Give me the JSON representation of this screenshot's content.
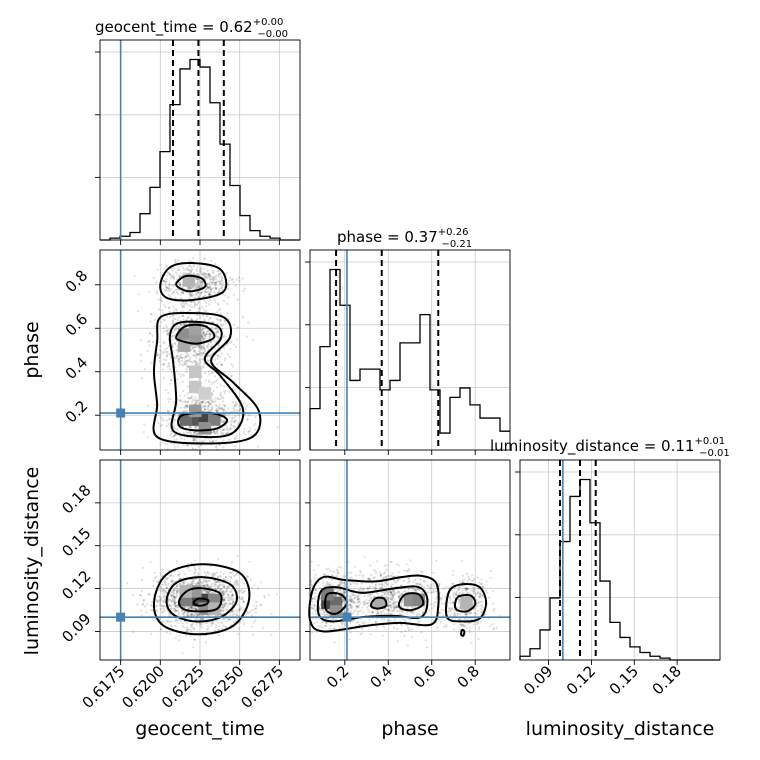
{
  "colors": {
    "truth": "#4682b4",
    "hist": "#000000",
    "grid": "#c9c9c9"
  },
  "labels": {
    "geocent_time": "geocent_time",
    "phase": "phase",
    "luminosity_distance": "luminosity_distance"
  },
  "titles": {
    "geocent_time": {
      "text": "geocent_time = 0.62",
      "sup": "+0.00",
      "sub": "−0.00"
    },
    "phase": {
      "text": "phase = 0.37",
      "sup": "+0.26",
      "sub": "−0.21"
    },
    "luminosity_distance": {
      "text": "luminosity_distance = 0.11",
      "sup": "+0.01",
      "sub": "−0.01"
    }
  },
  "chart_data": {
    "type": "corner",
    "parameters": [
      "geocent_time",
      "phase",
      "luminosity_distance"
    ],
    "ranges": {
      "geocent_time": [
        0.6162,
        0.6288
      ],
      "phase": [
        0.04,
        0.96
      ],
      "luminosity_distance": [
        0.07,
        0.21
      ]
    },
    "ticks": {
      "geocent_time": [
        "0.6175",
        "0.6200",
        "0.6225",
        "0.6250",
        "0.6275"
      ],
      "phase": [
        "0.2",
        "0.4",
        "0.6",
        "0.8"
      ],
      "luminosity_distance_y": [
        "0.09",
        "0.12",
        "0.15",
        "0.18"
      ],
      "luminosity_distance_x": [
        "0.09",
        "0.12",
        "0.15",
        "0.18"
      ]
    },
    "truths": {
      "geocent_time": 0.6175,
      "phase": 0.21,
      "luminosity_distance": 0.1
    },
    "quantiles": {
      "geocent_time": [
        0.6208,
        0.6224,
        0.624
      ],
      "phase": [
        0.16,
        0.37,
        0.63
      ],
      "luminosity_distance": [
        0.098,
        0.112,
        0.123
      ]
    },
    "histograms": {
      "geocent_time": {
        "edges": [
          0.6162,
          0.61683,
          0.61746,
          0.61809,
          0.61872,
          0.61935,
          0.61998,
          0.62061,
          0.62124,
          0.62187,
          0.6225,
          0.62313,
          0.62376,
          0.62439,
          0.62502,
          0.62565,
          0.62628,
          0.62691,
          0.62754,
          0.62817,
          0.6288
        ],
        "counts": [
          0,
          0.01,
          0.02,
          0.04,
          0.14,
          0.28,
          0.47,
          0.72,
          0.91,
          0.96,
          0.92,
          0.73,
          0.51,
          0.29,
          0.13,
          0.05,
          0.02,
          0.01,
          0,
          0
        ]
      },
      "phase": {
        "edges": [
          0.04,
          0.086,
          0.132,
          0.178,
          0.224,
          0.27,
          0.316,
          0.362,
          0.408,
          0.454,
          0.5,
          0.546,
          0.592,
          0.638,
          0.684,
          0.73,
          0.776,
          0.822,
          0.868,
          0.914,
          0.96
        ],
        "counts": [
          0.22,
          0.55,
          0.96,
          0.77,
          0.37,
          0.43,
          0.43,
          0.32,
          0.37,
          0.57,
          0.57,
          0.72,
          0.32,
          0.09,
          0.28,
          0.33,
          0.24,
          0.17,
          0.17,
          0.1
        ]
      },
      "luminosity_distance": {
        "edges": [
          0.07,
          0.077,
          0.084,
          0.091,
          0.098,
          0.105,
          0.112,
          0.119,
          0.126,
          0.133,
          0.14,
          0.147,
          0.154,
          0.161,
          0.168,
          0.175,
          0.182,
          0.189,
          0.196,
          0.203,
          0.21
        ],
        "counts": [
          0.02,
          0.06,
          0.16,
          0.33,
          0.63,
          0.87,
          0.96,
          0.73,
          0.42,
          0.2,
          0.12,
          0.07,
          0.04,
          0.02,
          0.01,
          0,
          0,
          0,
          0,
          0
        ]
      }
    },
    "contours": {
      "phase_vs_geocent_time": [
        [
          [
            0.62,
            0.8
          ],
          [
            0.6206,
            0.88
          ],
          [
            0.622,
            0.9
          ],
          [
            0.6238,
            0.87
          ],
          [
            0.624,
            0.77
          ],
          [
            0.622,
            0.73
          ],
          [
            0.6204,
            0.74
          ]
        ],
        [
          [
            0.621,
            0.8
          ],
          [
            0.6216,
            0.84
          ],
          [
            0.6226,
            0.83
          ],
          [
            0.6228,
            0.79
          ],
          [
            0.6218,
            0.77
          ]
        ],
        [
          [
            0.6198,
            0.54
          ],
          [
            0.62,
            0.65
          ],
          [
            0.6218,
            0.67
          ],
          [
            0.624,
            0.65
          ],
          [
            0.6244,
            0.56
          ],
          [
            0.6232,
            0.45
          ],
          [
            0.6246,
            0.35
          ],
          [
            0.6262,
            0.22
          ],
          [
            0.6258,
            0.1
          ],
          [
            0.623,
            0.07
          ],
          [
            0.6198,
            0.1
          ],
          [
            0.6198,
            0.25
          ],
          [
            0.6196,
            0.4
          ]
        ],
        [
          [
            0.6206,
            0.56
          ],
          [
            0.621,
            0.62
          ],
          [
            0.6222,
            0.63
          ],
          [
            0.6236,
            0.61
          ],
          [
            0.6238,
            0.55
          ],
          [
            0.6228,
            0.46
          ],
          [
            0.6238,
            0.38
          ],
          [
            0.6252,
            0.23
          ],
          [
            0.6246,
            0.12
          ],
          [
            0.6228,
            0.1
          ],
          [
            0.6208,
            0.13
          ],
          [
            0.621,
            0.27
          ],
          [
            0.6208,
            0.45
          ]
        ],
        [
          [
            0.621,
            0.56
          ],
          [
            0.6216,
            0.61
          ],
          [
            0.6228,
            0.61
          ],
          [
            0.6234,
            0.56
          ],
          [
            0.6224,
            0.53
          ],
          [
            0.6214,
            0.54
          ]
        ],
        [
          [
            0.6212,
            0.15
          ],
          [
            0.6214,
            0.2
          ],
          [
            0.6232,
            0.21
          ],
          [
            0.6242,
            0.18
          ],
          [
            0.6236,
            0.14
          ],
          [
            0.6222,
            0.13
          ]
        ]
      ],
      "luminosity_distance_vs_geocent_time": [
        [
          [
            0.6196,
            0.11
          ],
          [
            0.6204,
            0.13
          ],
          [
            0.6226,
            0.137
          ],
          [
            0.625,
            0.131
          ],
          [
            0.6256,
            0.113
          ],
          [
            0.6246,
            0.094
          ],
          [
            0.6224,
            0.088
          ],
          [
            0.6202,
            0.094
          ]
        ],
        [
          [
            0.6204,
            0.112
          ],
          [
            0.621,
            0.124
          ],
          [
            0.6226,
            0.128
          ],
          [
            0.6244,
            0.123
          ],
          [
            0.6248,
            0.111
          ],
          [
            0.6238,
            0.1
          ],
          [
            0.6222,
            0.097
          ],
          [
            0.6208,
            0.102
          ]
        ],
        [
          [
            0.6212,
            0.112
          ],
          [
            0.6218,
            0.119
          ],
          [
            0.6228,
            0.12
          ],
          [
            0.6238,
            0.116
          ],
          [
            0.6236,
            0.106
          ],
          [
            0.6224,
            0.104
          ],
          [
            0.6214,
            0.106
          ]
        ],
        [
          [
            0.6221,
            0.11
          ],
          [
            0.6224,
            0.113
          ],
          [
            0.623,
            0.112
          ],
          [
            0.6229,
            0.109
          ],
          [
            0.6224,
            0.108
          ]
        ]
      ],
      "luminosity_distance_vs_phase": [
        [
          [
            0.04,
            0.098
          ],
          [
            0.05,
            0.118
          ],
          [
            0.1,
            0.128
          ],
          [
            0.2,
            0.126
          ],
          [
            0.34,
            0.125
          ],
          [
            0.46,
            0.128
          ],
          [
            0.55,
            0.129
          ],
          [
            0.62,
            0.124
          ],
          [
            0.63,
            0.108
          ],
          [
            0.6,
            0.095
          ],
          [
            0.45,
            0.096
          ],
          [
            0.3,
            0.094
          ],
          [
            0.1,
            0.09
          ]
        ],
        [
          [
            0.08,
            0.102
          ],
          [
            0.09,
            0.118
          ],
          [
            0.16,
            0.121
          ],
          [
            0.28,
            0.117
          ],
          [
            0.42,
            0.12
          ],
          [
            0.54,
            0.121
          ],
          [
            0.58,
            0.112
          ],
          [
            0.55,
            0.1
          ],
          [
            0.42,
            0.101
          ],
          [
            0.28,
            0.1
          ],
          [
            0.14,
            0.097
          ]
        ],
        [
          [
            0.11,
            0.107
          ],
          [
            0.12,
            0.116
          ],
          [
            0.18,
            0.116
          ],
          [
            0.21,
            0.11
          ],
          [
            0.17,
            0.103
          ],
          [
            0.13,
            0.103
          ]
        ],
        [
          [
            0.32,
            0.108
          ],
          [
            0.34,
            0.113
          ],
          [
            0.38,
            0.113
          ],
          [
            0.39,
            0.108
          ],
          [
            0.35,
            0.106
          ]
        ],
        [
          [
            0.45,
            0.11
          ],
          [
            0.48,
            0.116
          ],
          [
            0.54,
            0.116
          ],
          [
            0.56,
            0.109
          ],
          [
            0.51,
            0.105
          ],
          [
            0.46,
            0.106
          ]
        ],
        [
          [
            0.67,
            0.1
          ],
          [
            0.68,
            0.118
          ],
          [
            0.74,
            0.123
          ],
          [
            0.82,
            0.121
          ],
          [
            0.85,
            0.11
          ],
          [
            0.82,
            0.099
          ],
          [
            0.74,
            0.097
          ]
        ],
        [
          [
            0.71,
            0.106
          ],
          [
            0.72,
            0.114
          ],
          [
            0.78,
            0.115
          ],
          [
            0.8,
            0.109
          ],
          [
            0.76,
            0.104
          ]
        ],
        [
          [
            0.735,
            0.088
          ],
          [
            0.74,
            0.091
          ],
          [
            0.75,
            0.09
          ],
          [
            0.745,
            0.087
          ]
        ]
      ]
    },
    "density_cells": {
      "phase_vs_geocent_time": [
        [
          0.6215,
          0.57,
          0.5
        ],
        [
          0.6222,
          0.55,
          0.45
        ],
        [
          0.6215,
          0.52,
          0.35
        ],
        [
          0.6222,
          0.6,
          0.4
        ],
        [
          0.6222,
          0.18,
          0.8
        ],
        [
          0.6228,
          0.18,
          0.9
        ],
        [
          0.6216,
          0.18,
          0.7
        ],
        [
          0.6234,
          0.18,
          0.6
        ],
        [
          0.6222,
          0.22,
          0.45
        ],
        [
          0.6228,
          0.14,
          0.5
        ],
        [
          0.6218,
          0.82,
          0.3
        ],
        [
          0.6222,
          0.4,
          0.2
        ],
        [
          0.6222,
          0.33,
          0.2
        ],
        [
          0.6228,
          0.3,
          0.15
        ]
      ],
      "luminosity_distance_vs_geocent_time": [
        [
          0.6222,
          0.112,
          0.85
        ],
        [
          0.6228,
          0.112,
          0.9
        ],
        [
          0.6216,
          0.112,
          0.6
        ],
        [
          0.6234,
          0.112,
          0.55
        ],
        [
          0.6222,
          0.118,
          0.45
        ],
        [
          0.6228,
          0.106,
          0.5
        ],
        [
          0.6216,
          0.118,
          0.3
        ],
        [
          0.6234,
          0.106,
          0.3
        ]
      ],
      "luminosity_distance_vs_phase": [
        [
          0.12,
          0.11,
          0.9
        ],
        [
          0.16,
          0.11,
          0.7
        ],
        [
          0.12,
          0.116,
          0.6
        ],
        [
          0.16,
          0.104,
          0.5
        ],
        [
          0.36,
          0.11,
          0.35
        ],
        [
          0.5,
          0.112,
          0.5
        ],
        [
          0.54,
          0.112,
          0.55
        ],
        [
          0.76,
          0.11,
          0.3
        ]
      ]
    }
  }
}
